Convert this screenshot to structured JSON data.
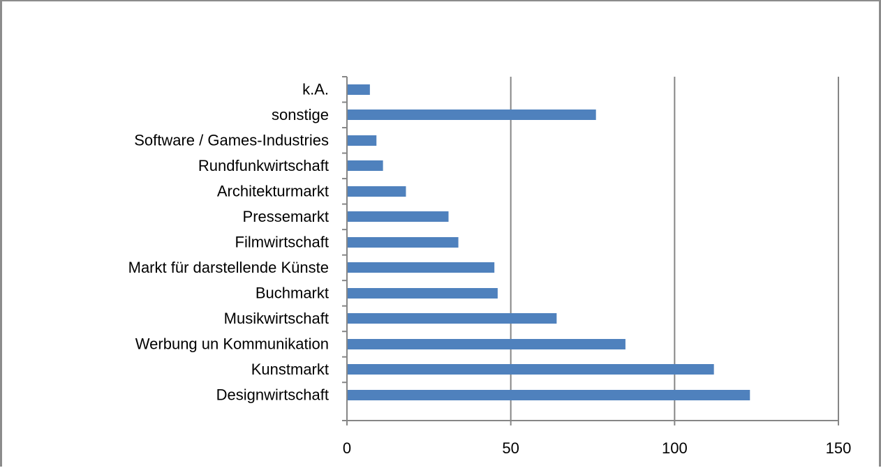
{
  "chart_data": {
    "type": "bar",
    "orientation": "horizontal",
    "categories": [
      "k.A.",
      "sonstige",
      "Software / Games-Industries",
      "Rundfunkwirtschaft",
      "Architekturmarkt",
      "Pressemarkt",
      "Filmwirtschaft",
      "Markt für darstellende Künste",
      "Buchmarkt",
      "Musikwirtschaft",
      "Werbung un Kommunikation",
      "Kunstmarkt",
      "Designwirtschaft"
    ],
    "values": [
      7,
      76,
      9,
      11,
      18,
      31,
      34,
      45,
      46,
      64,
      85,
      112,
      123
    ],
    "xlim": [
      0,
      150
    ],
    "xticks": [
      0,
      50,
      100,
      150
    ],
    "xtick_labels": [
      "0",
      "50",
      "100",
      "150"
    ],
    "grid": "vertical",
    "legend": "none",
    "title": "",
    "xlabel": "",
    "ylabel": "",
    "colors": {
      "bar": "#4f81bd",
      "grid": "#868686",
      "axis": "#868686",
      "frame": "#8c8c8c"
    }
  }
}
